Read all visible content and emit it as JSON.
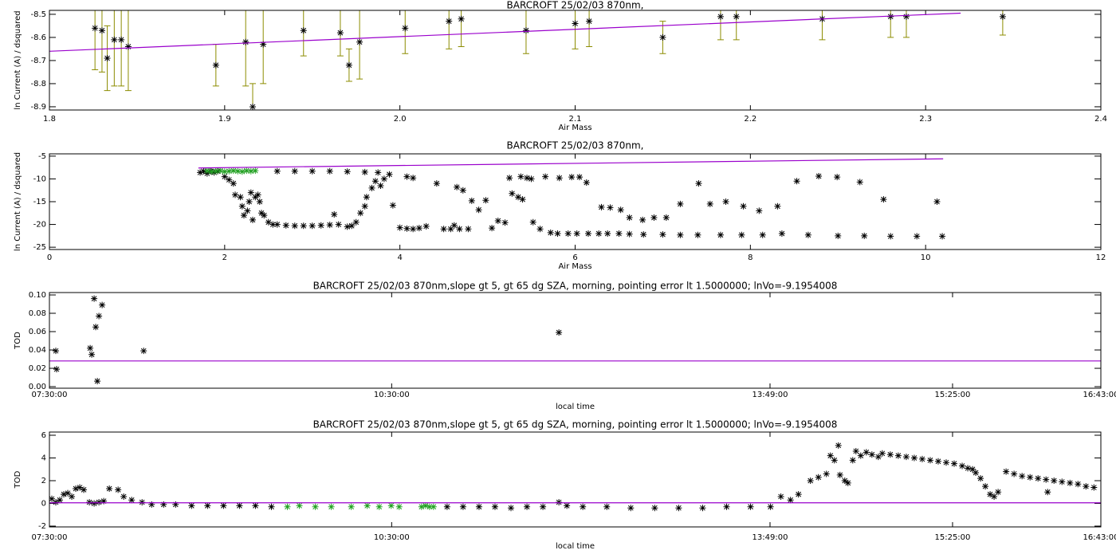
{
  "chart_data": [
    {
      "type": "scatter",
      "title": "BARCROFT 25/02/03 870nm,",
      "xlabel": "Air Mass",
      "ylabel": "ln Current (A) / dsquared",
      "xlim": [
        1.8,
        2.4
      ],
      "ylim": [
        -8.914,
        -8.483
      ],
      "xticks": [
        1.8,
        1.9,
        {
          "value": 2,
          "label": "2.0"
        },
        2.1,
        2.2,
        2.3,
        2.4
      ],
      "yticks": [
        -8.5,
        -8.6,
        -8.7,
        -8.8,
        -8.9
      ],
      "series": [
        {
          "mode": "markers",
          "color": "#000000",
          "error_color": "#8c8c00",
          "x": [
            1.826,
            1.83,
            1.833,
            1.837,
            1.841,
            1.845,
            1.895,
            1.912,
            1.916,
            1.922,
            1.945,
            1.966,
            1.971,
            1.977,
            2.003,
            2.028,
            2.035,
            2.072,
            2.1,
            2.108,
            2.15,
            2.183,
            2.192,
            2.241,
            2.28,
            2.289,
            2.344
          ],
          "values": [
            -8.56,
            -8.57,
            -8.69,
            -8.61,
            -8.61,
            -8.64,
            -8.72,
            -8.62,
            -8.9,
            -8.63,
            -8.57,
            -8.58,
            -8.72,
            -8.62,
            -8.56,
            -8.53,
            -8.52,
            -8.57,
            -8.54,
            -8.53,
            -8.6,
            -8.51,
            -8.51,
            -8.52,
            -8.51,
            -8.51,
            -8.51
          ],
          "errors": [
            0.18,
            0.18,
            0.14,
            0.2,
            0.2,
            0.19,
            0.09,
            0.19,
            0.1,
            0.17,
            0.11,
            0.1,
            0.07,
            0.16,
            0.11,
            0.12,
            0.12,
            0.1,
            0.11,
            0.11,
            0.07,
            0.1,
            0.1,
            0.09,
            0.09,
            0.09,
            0.08
          ]
        },
        {
          "mode": "line",
          "color": "#9a00cc",
          "x": [
            1.8,
            2.32
          ],
          "values": [
            -8.66,
            -8.495
          ]
        }
      ]
    },
    {
      "type": "scatter",
      "title": "BARCROFT 25/02/03 870nm,",
      "xlabel": "Air Mass",
      "ylabel": "ln Current (A) / dsquared",
      "xlim": [
        0,
        12
      ],
      "ylim": [
        -25.5,
        -4.5
      ],
      "xticks": [
        0,
        2,
        4,
        6,
        8,
        10,
        12
      ],
      "yticks": [
        -5,
        -10,
        -15,
        -20,
        -25
      ],
      "series": [
        {
          "mode": "markers",
          "color": "#000000",
          "x": [
            1.72,
            1.76,
            1.8,
            1.84,
            1.88,
            1.92,
            2.0,
            2.05,
            2.1,
            2.12,
            2.18,
            2.2,
            2.22,
            2.26,
            2.28,
            2.3,
            2.32,
            2.35,
            2.38,
            2.4,
            2.42,
            2.45,
            2.5,
            2.55,
            2.6,
            2.7,
            2.8,
            2.9,
            3.0,
            3.1,
            3.2,
            3.25,
            3.3,
            3.4,
            3.45,
            3.5,
            3.55,
            3.6,
            3.62,
            3.68,
            3.72,
            3.78,
            3.82,
            3.88,
            3.92,
            2.6,
            2.8,
            3.0,
            3.2,
            3.4,
            3.6,
            3.75,
            4.0,
            4.08,
            4.15,
            4.22,
            4.3,
            4.08,
            4.15,
            4.42,
            4.5,
            4.58,
            4.62,
            4.65,
            4.68,
            4.72,
            4.78,
            4.82,
            4.9,
            4.98,
            5.05,
            5.12,
            5.2,
            5.25,
            5.28,
            5.35,
            5.38,
            5.4,
            5.45,
            5.5,
            5.52,
            5.6,
            5.66,
            5.72,
            5.8,
            5.82,
            5.92,
            5.96,
            6.02,
            6.05,
            6.13,
            6.15,
            6.27,
            6.3,
            6.37,
            6.4,
            6.5,
            6.52,
            6.62,
            6.62,
            6.77,
            6.78,
            6.9,
            7.0,
            7.04,
            7.2,
            7.2,
            7.4,
            7.41,
            7.54,
            7.66,
            7.72,
            7.9,
            7.92,
            8.1,
            8.14,
            8.31,
            8.36,
            8.53,
            8.66,
            8.78,
            8.99,
            9.0,
            9.25,
            9.3,
            9.52,
            9.6,
            9.9,
            10.13,
            10.19
          ],
          "values": [
            -8.6,
            -8.3,
            -8.8,
            -8.3,
            -8.6,
            -8.3,
            -9.5,
            -10.2,
            -11,
            -13.5,
            -14,
            -16,
            -18,
            -17,
            -15,
            -13,
            -19,
            -14,
            -13.5,
            -15,
            -17.5,
            -18,
            -19.5,
            -20,
            -20,
            -20.2,
            -20.3,
            -20.3,
            -20.3,
            -20.2,
            -20.1,
            -17.8,
            -20,
            -20.5,
            -20.3,
            -19.5,
            -17.5,
            -16,
            -14,
            -12,
            -10.5,
            -11.5,
            -10,
            -9,
            -15.8,
            -8.3,
            -8.3,
            -8.3,
            -8.3,
            -8.4,
            -8.5,
            -8.6,
            -20.7,
            -20.9,
            -21,
            -20.8,
            -20.4,
            -9.5,
            -9.8,
            -11,
            -21,
            -21,
            -20.2,
            -11.8,
            -21,
            -12.5,
            -21,
            -14.8,
            -16.8,
            -14.7,
            -20.8,
            -19.2,
            -19.6,
            -9.8,
            -13.2,
            -14,
            -9.5,
            -14.5,
            -9.8,
            -10,
            -19.5,
            -21,
            -9.5,
            -21.8,
            -22,
            -9.8,
            -22,
            -9.6,
            -22,
            -9.6,
            -10.8,
            -22,
            -22,
            -16.2,
            -22,
            -16.3,
            -22,
            -16.8,
            -22.1,
            -18.5,
            -19,
            -22.2,
            -18.5,
            -22.2,
            -18.5,
            -22.3,
            -15.5,
            -22.3,
            -11,
            -15.5,
            -22.3,
            -15,
            -22.3,
            -16,
            -17,
            -22.3,
            -16,
            -22,
            -10.5,
            -22.3,
            -9.4,
            -9.6,
            -22.5,
            -10.7,
            -22.5,
            -14.5,
            -22.6,
            -22.6,
            -15,
            -22.6
          ]
        },
        {
          "mode": "markers",
          "color": "#22a022",
          "x": [
            1.8,
            1.85,
            1.9,
            1.95,
            2.0,
            2.05,
            2.1,
            2.15,
            2.2,
            2.25,
            2.3,
            2.35
          ],
          "values": [
            -8.2,
            -8.4,
            -8.3,
            -8.2,
            -8.4,
            -8.3,
            -8.2,
            -8.3,
            -8.4,
            -8.2,
            -8.3,
            -8.2
          ]
        },
        {
          "mode": "line",
          "color": "#9a00cc",
          "x": [
            1.7,
            10.2
          ],
          "values": [
            -7.6,
            -5.6
          ]
        }
      ]
    },
    {
      "type": "scatter",
      "title": "BARCROFT 25/02/03 870nm,slope gt 5, gt 65 dg SZA, morning, pointing error lt 1.5000000; lnVo=-9.1954008",
      "xlabel": "local time",
      "ylabel": "TOD",
      "xlim": [
        7.5,
        16.7167
      ],
      "ylim": [
        -0.0017,
        0.1026
      ],
      "xticks": [
        {
          "value": 7.5,
          "label": "07:30:00"
        },
        {
          "value": 10.5,
          "label": "10:30:00"
        },
        {
          "value": 13.8167,
          "label": "13:49:00"
        },
        {
          "value": 15.4167,
          "label": "15:25:00"
        },
        {
          "value": 16.7167,
          "label": "16:43:00"
        }
      ],
      "yticks": [
        {
          "value": 0,
          "label": "0.00"
        },
        {
          "value": 0.02,
          "label": "0.02"
        },
        {
          "value": 0.04,
          "label": "0.04"
        },
        {
          "value": 0.06,
          "label": "0.06"
        },
        {
          "value": 0.08,
          "label": "0.08"
        },
        {
          "value": 0.1,
          "label": "0.10"
        }
      ],
      "series": [
        {
          "mode": "markers",
          "color": "#000000",
          "x": [
            7.556,
            7.563,
            7.857,
            7.871,
            7.892,
            7.906,
            7.92,
            7.934,
            7.962,
            8.326,
            11.966
          ],
          "values": [
            0.039,
            0.019,
            0.042,
            0.035,
            0.096,
            0.065,
            0.006,
            0.077,
            0.089,
            0.039,
            0.059
          ]
        },
        {
          "mode": "line",
          "color": "#9a00cc",
          "x": [
            7.5,
            16.7167
          ],
          "values": [
            0.028,
            0.028
          ]
        }
      ]
    },
    {
      "type": "scatter",
      "title": "BARCROFT 25/02/03 870nm,slope gt 5, gt 65 dg SZA, morning, pointing error lt 1.5000000; lnVo=-9.1954008",
      "xlabel": "local time",
      "ylabel": "TOD",
      "xlim": [
        7.5,
        16.7167
      ],
      "ylim": [
        -2.07,
        6.28
      ],
      "xticks": [
        {
          "value": 7.5,
          "label": "07:30:00"
        },
        {
          "value": 10.5,
          "label": "10:30:00"
        },
        {
          "value": 13.8167,
          "label": "13:49:00"
        },
        {
          "value": 15.4167,
          "label": "15:25:00"
        },
        {
          "value": 16.7167,
          "label": "16:43:00"
        }
      ],
      "yticks": [
        -2,
        0,
        2,
        4,
        6
      ],
      "series": [
        {
          "mode": "markers",
          "color": "#000000",
          "x": [
            7.521,
            7.556,
            7.591,
            7.626,
            7.661,
            7.696,
            7.731,
            7.766,
            7.801,
            7.85,
            7.892,
            7.934,
            7.976,
            8.025,
            8.102,
            8.151,
            8.221,
            8.312,
            8.396,
            8.501,
            8.606,
            8.746,
            8.886,
            9.026,
            9.166,
            9.306,
            9.446,
            10.986,
            11.126,
            11.266,
            11.406,
            11.546,
            11.686,
            11.826,
            11.966,
            12.036,
            12.176,
            12.386,
            12.596,
            12.806,
            13.016,
            13.226,
            13.436,
            13.646,
            13.821,
            13.912,
            13.996,
            14.066,
            14.171,
            14.241,
            14.311,
            14.346,
            14.381,
            14.416,
            14.43,
            14.472,
            14.5,
            14.542,
            14.57,
            14.612,
            14.661,
            14.71,
            14.766,
            14.801,
            14.871,
            14.941,
            15.011,
            15.081,
            15.151,
            15.221,
            15.291,
            15.361,
            15.431,
            15.501,
            15.55,
            15.592,
            15.62,
            15.662,
            15.704,
            15.746,
            15.781,
            15.816,
            15.886,
            15.956,
            16.026,
            16.096,
            16.166,
            16.236,
            16.25,
            16.306,
            16.376,
            16.446,
            16.516,
            16.586,
            16.656
          ],
          "values": [
            0.4,
            0.1,
            0.3,
            0.8,
            0.9,
            0.6,
            1.3,
            1.4,
            1.2,
            0.1,
            0,
            0.1,
            0.2,
            1.3,
            1.2,
            0.6,
            0.3,
            0.1,
            -0.1,
            -0.1,
            -0.1,
            -0.2,
            -0.2,
            -0.2,
            -0.2,
            -0.2,
            -0.3,
            -0.3,
            -0.3,
            -0.3,
            -0.3,
            -0.4,
            -0.3,
            -0.3,
            0.1,
            -0.2,
            -0.3,
            -0.3,
            -0.4,
            -0.4,
            -0.4,
            -0.4,
            -0.3,
            -0.3,
            -0.3,
            0.6,
            0.3,
            0.8,
            2.0,
            2.3,
            2.6,
            4.2,
            3.8,
            5.1,
            2.5,
            2.0,
            1.8,
            3.8,
            4.6,
            4.2,
            4.5,
            4.3,
            4.1,
            4.4,
            4.3,
            4.2,
            4.1,
            4.0,
            3.9,
            3.8,
            3.7,
            3.6,
            3.5,
            3.3,
            3.1,
            3.0,
            2.7,
            2.2,
            1.5,
            0.8,
            0.6,
            1.0,
            2.8,
            2.6,
            2.4,
            2.3,
            2.2,
            2.1,
            1.0,
            2.0,
            1.9,
            1.8,
            1.7,
            1.5,
            1.4
          ]
        },
        {
          "mode": "markers",
          "color": "#22a022",
          "x": [
            9.586,
            9.691,
            9.831,
            9.971,
            10.146,
            10.286,
            10.391,
            10.496,
            10.566,
            10.762,
            10.797,
            10.832,
            10.867
          ],
          "values": [
            -0.3,
            -0.2,
            -0.3,
            -0.3,
            -0.3,
            -0.2,
            -0.3,
            -0.2,
            -0.3,
            -0.3,
            -0.2,
            -0.3,
            -0.3
          ]
        },
        {
          "mode": "line",
          "color": "#9a00cc",
          "x": [
            7.5,
            16.7167
          ],
          "values": [
            0.05,
            0.05
          ]
        }
      ]
    }
  ]
}
